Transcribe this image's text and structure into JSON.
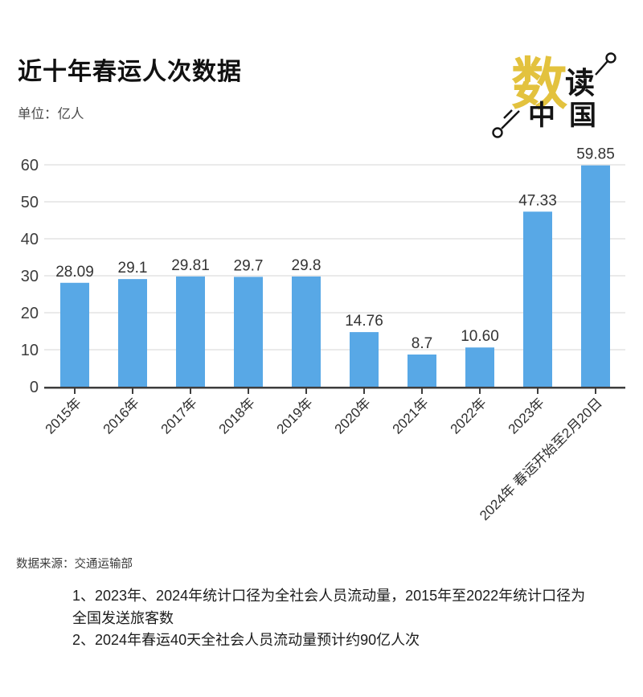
{
  "header": {
    "title": "近十年春运人次数据",
    "unit_label": "单位：亿人"
  },
  "logo": {
    "char_main": "数",
    "char_second": "读",
    "char_third": "中",
    "char_fourth": "国",
    "accent_color": "#e3c23e",
    "text_color": "#141414"
  },
  "chart_data": {
    "type": "bar",
    "title": "近十年春运人次数据",
    "unit": "亿人",
    "categories": [
      "2015年",
      "2016年",
      "2017年",
      "2018年",
      "2019年",
      "2020年",
      "2021年",
      "2022年",
      "2023年",
      "2024年 春运开始至2月20日"
    ],
    "values": [
      28.09,
      29.1,
      29.81,
      29.7,
      29.8,
      14.76,
      8.7,
      10.6,
      47.33,
      59.85
    ],
    "value_labels": [
      "28.09",
      "29.1",
      "29.81",
      "29.7",
      "29.8",
      "14.76",
      "8.7",
      "10.60",
      "47.33",
      "59.85"
    ],
    "ylim": [
      0,
      60
    ],
    "yticks": [
      0,
      10,
      20,
      30,
      40,
      50,
      60
    ],
    "grid": true,
    "legend": "none",
    "bar_color": "#58a8e6",
    "grid_color": "#e4e4e4",
    "axis_color": "#3d3d3d",
    "tick_label_color": "#3d3d3d",
    "value_label_color": "#333333",
    "x_label_color": "#2e2e2e"
  },
  "footer": {
    "source": "数据来源：交通运输部",
    "notes": [
      "1、2023年、2024年统计口径为全社会人员流动量，2015年至2022年统计口径为全国发送旅客数",
      "2、2024年春运40天全社会人员流动量预计约90亿人次"
    ]
  }
}
